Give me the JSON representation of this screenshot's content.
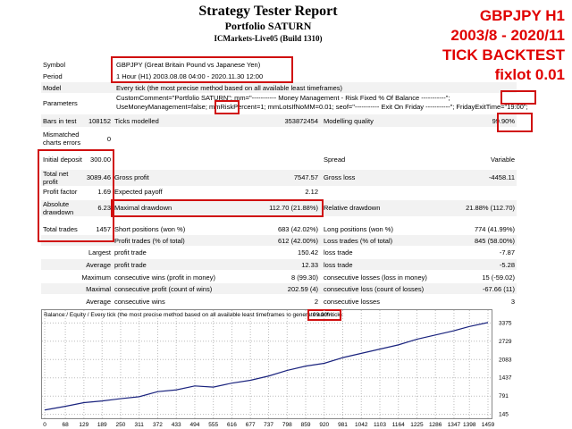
{
  "header": {
    "title": "Strategy Tester Report",
    "subtitle": "Portfolio SATURN",
    "server": "ICMarkets-Live05 (Build 1310)"
  },
  "overlay": [
    "GBPJPY H1",
    "2003/8 - 2020/11",
    "TICK BACKTEST",
    "fixlot 0.01"
  ],
  "info": {
    "symbol": [
      "Symbol",
      "GBPJPY (Great Britain Pound vs Japanese Yen)"
    ],
    "period": [
      "Period",
      "1 Hour (H1) 2003.08.08 04:00 - 2020.11.30 12:00"
    ],
    "model": [
      "Model",
      "Every tick (the most precise method based on all available least timeframes)"
    ],
    "parameters": [
      "Parameters",
      "CustomComment=\"Portfolio SATURN\"; mm=\"----------- Money Management - Risk Fixed % Of Balance -----------\"; UseMoneyManagement=false; mmRiskPercent=1; mmLotsIfNoMM=0.01; seof=\"----------- Exit On Friday -----------\"; FridayExitTime=\"19:00\";"
    ]
  },
  "stats": {
    "bars": [
      "Bars in test",
      "108152",
      "Ticks modelled",
      "353872454",
      "Modelling quality",
      "99.90%"
    ],
    "mismatch": [
      "Mismatched charts errors",
      "0"
    ],
    "deposit": [
      "Initial deposit",
      "300.00",
      "Spread",
      "Variable"
    ],
    "net": [
      "Total net profit",
      "3089.46",
      "Gross profit",
      "7547.57",
      "Gross loss",
      "-4458.11"
    ],
    "pf": [
      "Profit factor",
      "1.69",
      "Expected payoff",
      "2.12"
    ],
    "dd": [
      "Absolute drawdown",
      "6.23",
      "Maximal drawdown",
      "112.70 (21.88%)",
      "Relative drawdown",
      "21.88% (112.70)"
    ],
    "trades": [
      "Total trades",
      "1457",
      "Short positions (won %)",
      "683 (42.02%)",
      "Long positions (won %)",
      "774 (41.99%)"
    ],
    "ptrades": [
      "Profit trades (% of total)",
      "612 (42.00%)",
      "Loss trades (% of total)",
      "845 (58.00%)"
    ],
    "largest": [
      "Largest",
      "profit trade",
      "150.42",
      "loss trade",
      "-7.87"
    ],
    "average": [
      "Average",
      "profit trade",
      "12.33",
      "loss trade",
      "-5.28"
    ],
    "maxwins": [
      "Maximum",
      "consecutive wins (profit in money)",
      "8 (99.30)",
      "consecutive losses (loss in money)",
      "15 (-59.02)"
    ],
    "maxprofit": [
      "Maximal",
      "consecutive profit (count of wins)",
      "202.59 (4)",
      "consecutive loss (count of losses)",
      "-67.66 (11)"
    ],
    "avgcons": [
      "Average",
      "consecutive wins",
      "2",
      "consecutive losses",
      "3"
    ]
  },
  "chart_data": {
    "type": "line",
    "title": "Balance / Equity / Every tick (the most precise method based on all available least timeframes to generate each tick)",
    "quality": "99.90%",
    "x": [
      0,
      68,
      129,
      189,
      250,
      311,
      372,
      433,
      494,
      555,
      616,
      677,
      737,
      798,
      859,
      920,
      981,
      1042,
      1103,
      1164,
      1225,
      1286,
      1347,
      1398,
      1459
    ],
    "series": [
      {
        "name": "Balance",
        "color": "#1a237e",
        "values": [
          300,
          430,
          560,
          620,
          700,
          770,
          950,
          1010,
          1150,
          1110,
          1250,
          1350,
          1500,
          1700,
          1850,
          1950,
          2150,
          2300,
          2450,
          2600,
          2800,
          2950,
          3100,
          3250,
          3389
        ]
      }
    ],
    "xlim": [
      0,
      1459
    ],
    "ylim": [
      40,
      3480
    ],
    "xticks": [
      0,
      68,
      129,
      189,
      250,
      311,
      372,
      433,
      494,
      555,
      616,
      677,
      737,
      798,
      859,
      920,
      981,
      1042,
      1103,
      1164,
      1225,
      1286,
      1347,
      1398,
      1459
    ],
    "yticks": [
      3375,
      2729,
      2083,
      1437,
      791,
      145
    ],
    "grid": true
  }
}
